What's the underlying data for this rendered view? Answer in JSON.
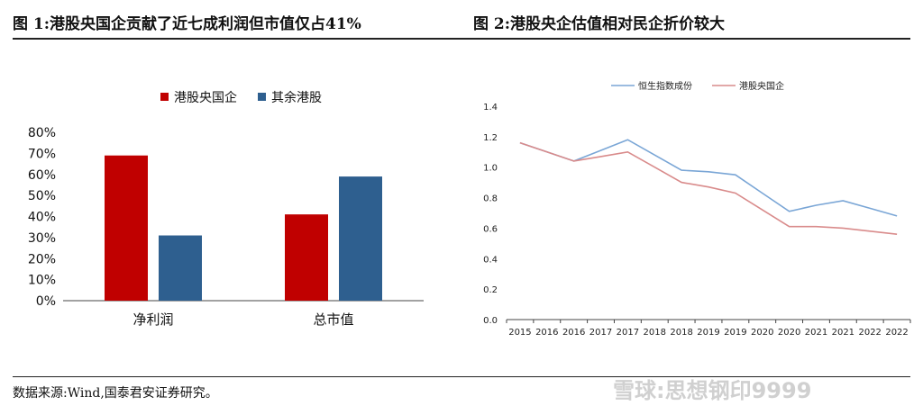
{
  "figure1_title": "图 1:港股央国企贡献了近七成利润但市值仅占41%",
  "figure2_title": "图 2:港股央企估值相对民企折价较大",
  "source": "数据来源:Wind,国泰君安证券研究。",
  "watermark": "雪球:思想钢印9999",
  "colors": {
    "red": "#c00000",
    "blue": "#2e5f8f",
    "line_blue": "#7aa6d6",
    "line_red": "#d98b8b"
  },
  "chart_data": [
    {
      "type": "bar",
      "categories": [
        "净利润",
        "总市值"
      ],
      "series": [
        {
          "name": "港股央国企",
          "values": [
            69,
            41
          ]
        },
        {
          "name": "其余港股",
          "values": [
            31,
            59
          ]
        }
      ],
      "y_ticks": [
        "0%",
        "10%",
        "20%",
        "30%",
        "40%",
        "50%",
        "60%",
        "70%",
        "80%"
      ],
      "ylim": [
        0,
        80
      ],
      "legend": "top"
    },
    {
      "type": "line",
      "x": [
        "2015",
        "2016",
        "2016",
        "2017",
        "2017",
        "2018",
        "2018",
        "2019",
        "2019",
        "2020",
        "2020",
        "2021",
        "2021",
        "2022",
        "2022"
      ],
      "series": [
        {
          "name": "恒生指数成份",
          "values": [
            1.16,
            1.1,
            1.04,
            1.11,
            1.18,
            1.08,
            0.98,
            0.97,
            0.95,
            0.83,
            0.71,
            0.75,
            0.78,
            0.73,
            0.68
          ]
        },
        {
          "name": "港股央国企",
          "values": [
            1.16,
            1.1,
            1.04,
            1.07,
            1.1,
            1.0,
            0.9,
            0.87,
            0.83,
            0.72,
            0.61,
            0.61,
            0.6,
            0.58,
            0.56
          ]
        }
      ],
      "y_ticks": [
        "0.0",
        "0.2",
        "0.4",
        "0.6",
        "0.8",
        "1.0",
        "1.2",
        "1.4"
      ],
      "ylim": [
        0,
        1.4
      ],
      "legend": "top"
    }
  ]
}
